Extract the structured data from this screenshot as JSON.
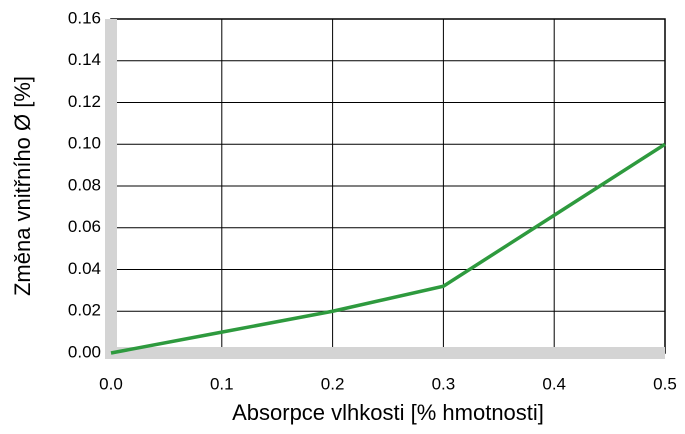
{
  "chart_data": {
    "type": "line",
    "x_label": "Absorpce vlhkosti [% hmotnosti]",
    "y_label": "Změna vnitřního Ø [%]",
    "x": [
      0,
      0.1,
      0.2,
      0.3,
      0.4,
      0.5
    ],
    "series": [
      {
        "name": "Změna vnitřního Ø",
        "color": "#2e9a3e",
        "values": [
          0,
          0.01,
          0.02,
          0.032,
          0.066,
          0.1
        ]
      }
    ],
    "xlim": [
      0,
      0.5
    ],
    "xticks": [
      {
        "value": 0,
        "label": "0.0"
      },
      0.1,
      0.2,
      0.3,
      0.4,
      0.5
    ],
    "ylim": [
      0,
      0.16
    ],
    "yticks": [
      {
        "value": 0,
        "label": "0.00"
      },
      {
        "value": 0.02,
        "label": "0.02"
      },
      {
        "value": 0.04,
        "label": "0.04"
      },
      {
        "value": 0.06,
        "label": "0.06"
      },
      {
        "value": 0.08,
        "label": "0.08"
      },
      {
        "value": 0.1,
        "label": "0.10"
      },
      {
        "value": 0.12,
        "label": "0.12"
      },
      {
        "value": 0.14,
        "label": "0.14"
      },
      {
        "value": 0.16,
        "label": "0.16"
      }
    ],
    "grid": true
  }
}
